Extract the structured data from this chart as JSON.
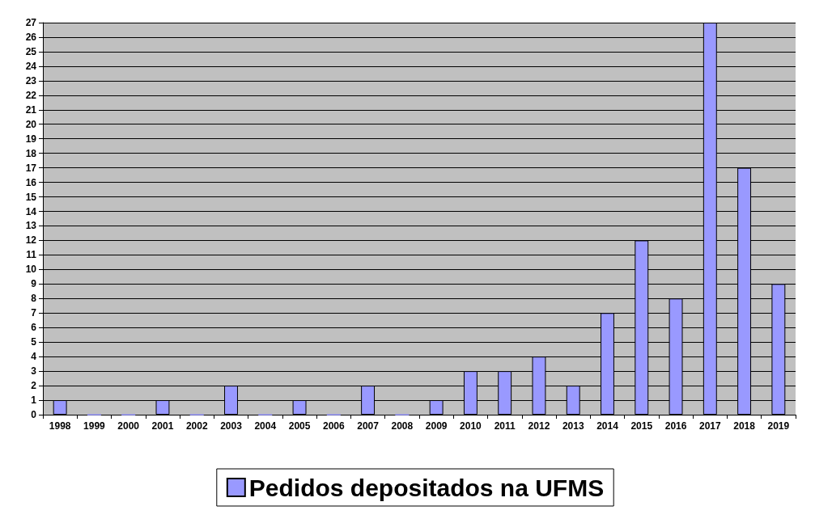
{
  "chart_data": {
    "type": "bar",
    "categories": [
      "1998",
      "1999",
      "2000",
      "2001",
      "2002",
      "2003",
      "2004",
      "2005",
      "2006",
      "2007",
      "2008",
      "2009",
      "2010",
      "2011",
      "2012",
      "2013",
      "2014",
      "2015",
      "2016",
      "2017",
      "2018",
      "2019"
    ],
    "series": [
      {
        "name": "Pedidos depositados na UFMS",
        "color": "#9999ff",
        "values": [
          1,
          0,
          0,
          1,
          0,
          2,
          0,
          1,
          0,
          2,
          0,
          1,
          3,
          3,
          4,
          2,
          7,
          12,
          8,
          27,
          17,
          9
        ]
      }
    ],
    "ylim": [
      0,
      27
    ],
    "yticks": [
      0,
      1,
      2,
      3,
      4,
      5,
      6,
      7,
      8,
      9,
      10,
      11,
      12,
      13,
      14,
      15,
      16,
      17,
      18,
      19,
      20,
      21,
      22,
      23,
      24,
      25,
      26,
      27
    ],
    "grid": "y",
    "legend": "bottom"
  }
}
